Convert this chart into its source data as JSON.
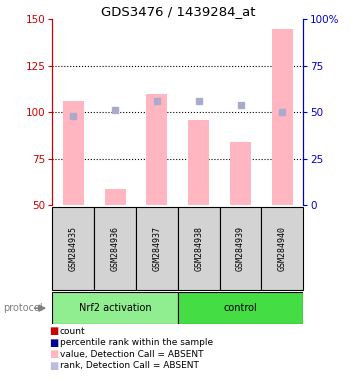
{
  "title": "GDS3476 / 1439284_at",
  "samples": [
    "GSM284935",
    "GSM284936",
    "GSM284937",
    "GSM284938",
    "GSM284939",
    "GSM284940"
  ],
  "pink_bar_values": [
    106,
    59,
    110,
    96,
    84,
    145
  ],
  "blue_square_pct": [
    48,
    51,
    56,
    56,
    54,
    50
  ],
  "ylim_left": [
    50,
    150
  ],
  "ylim_right": [
    0,
    100
  ],
  "left_ticks": [
    50,
    75,
    100,
    125,
    150
  ],
  "right_ticks": [
    0,
    25,
    50,
    75,
    100
  ],
  "right_tick_labels": [
    "0",
    "25",
    "50",
    "75",
    "100%"
  ],
  "bar_color_absent": "#FFB6C1",
  "square_color_absent": "#AAAACC",
  "left_color": "#CC0000",
  "right_color": "#0000CC",
  "bg_color": "#D3D3D3",
  "legend_colors": [
    "#CC0000",
    "#000099",
    "#FFB6C1",
    "#BBBBDD"
  ],
  "legend_labels": [
    "count",
    "percentile rank within the sample",
    "value, Detection Call = ABSENT",
    "rank, Detection Call = ABSENT"
  ],
  "nrf2_color": "#90EE90",
  "control_color": "#44DD44",
  "protocol_label": "protocol"
}
